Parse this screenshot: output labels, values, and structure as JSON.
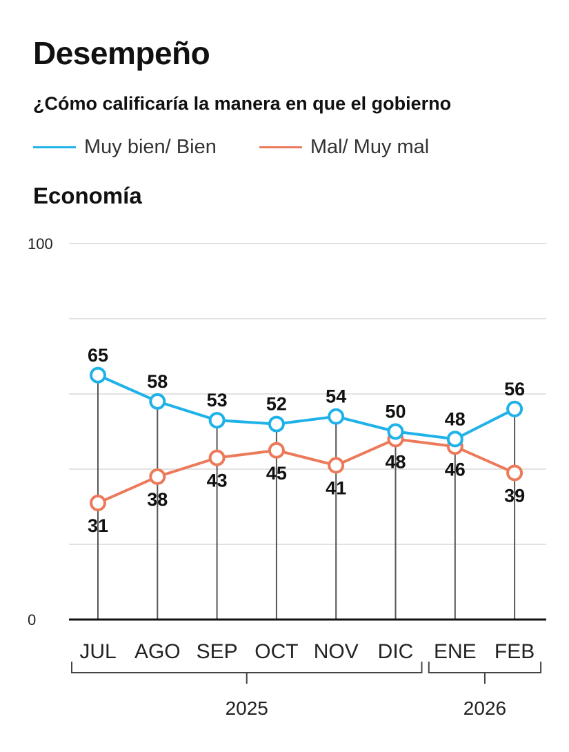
{
  "header": {
    "title": "Desempeño",
    "subtitle": "¿Cómo calificaría la manera en que el gobierno"
  },
  "legend": [
    {
      "label": "Muy bien/ Bien",
      "color": "#1fb2e8"
    },
    {
      "label": "Mal/ Muy mal",
      "color": "#ec7a5a"
    }
  ],
  "chart_data": {
    "type": "line",
    "title": "Economía",
    "categories": [
      "JUL",
      "AGO",
      "SEP",
      "OCT",
      "NOV",
      "DIC",
      "ENE",
      "FEB"
    ],
    "year_groups": [
      {
        "label": "2025",
        "from": 0,
        "to": 5
      },
      {
        "label": "2026",
        "from": 6,
        "to": 7
      }
    ],
    "ylim": [
      0,
      100
    ],
    "y_tick_labels": [
      "0",
      "100"
    ],
    "gridlines": [
      0,
      20,
      40,
      60,
      80,
      100
    ],
    "series": [
      {
        "name": "Muy bien/ Bien",
        "color": "#1fb2e8",
        "label_position": "above",
        "values": [
          65,
          58,
          53,
          52,
          54,
          50,
          48,
          56
        ]
      },
      {
        "name": "Mal/ Muy mal",
        "color": "#ec7a5a",
        "label_position": "below",
        "values": [
          31,
          38,
          43,
          45,
          41,
          48,
          46,
          39
        ]
      }
    ]
  }
}
